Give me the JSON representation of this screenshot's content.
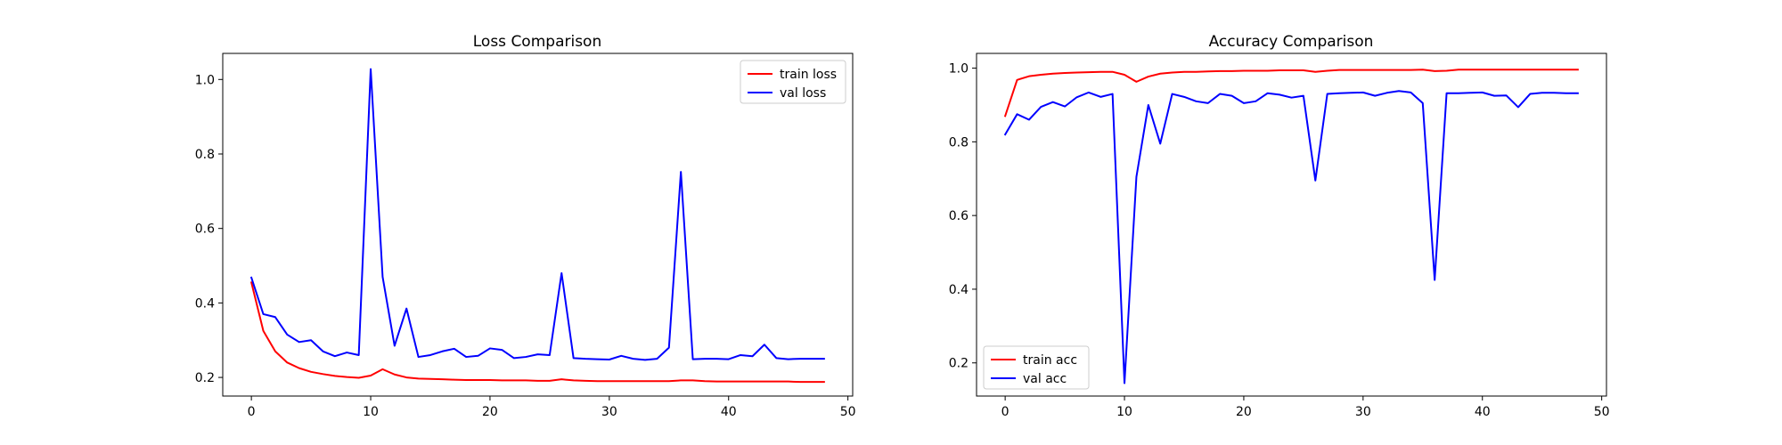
{
  "chart_data": [
    {
      "type": "line",
      "title": "Loss Comparison",
      "xlabel": "",
      "ylabel": "",
      "xlim": [
        -2.4,
        50.4
      ],
      "ylim": [
        0.15,
        1.07
      ],
      "x_ticks": [
        0,
        10,
        20,
        30,
        40,
        50
      ],
      "y_ticks": [
        0.2,
        0.4,
        0.6,
        0.8,
        1.0
      ],
      "grid": false,
      "legend": "upper-right",
      "series": [
        {
          "name": "train loss",
          "color": "#ff0000",
          "values": [
            0.455,
            0.325,
            0.27,
            0.24,
            0.225,
            0.215,
            0.209,
            0.204,
            0.201,
            0.199,
            0.205,
            0.222,
            0.208,
            0.2,
            0.197,
            0.196,
            0.195,
            0.194,
            0.193,
            0.193,
            0.193,
            0.192,
            0.192,
            0.192,
            0.191,
            0.191,
            0.195,
            0.192,
            0.191,
            0.19,
            0.19,
            0.19,
            0.19,
            0.19,
            0.19,
            0.19,
            0.192,
            0.192,
            0.19,
            0.189,
            0.189,
            0.189,
            0.189,
            0.189,
            0.189,
            0.189,
            0.188,
            0.188,
            0.188
          ]
        },
        {
          "name": "val loss",
          "color": "#0000ff",
          "values": [
            0.468,
            0.37,
            0.362,
            0.315,
            0.295,
            0.3,
            0.27,
            0.257,
            0.267,
            0.26,
            1.028,
            0.47,
            0.285,
            0.385,
            0.255,
            0.26,
            0.27,
            0.277,
            0.255,
            0.258,
            0.278,
            0.274,
            0.252,
            0.255,
            0.262,
            0.26,
            0.48,
            0.252,
            0.25,
            0.249,
            0.248,
            0.258,
            0.25,
            0.247,
            0.25,
            0.28,
            0.752,
            0.249,
            0.25,
            0.25,
            0.249,
            0.26,
            0.257,
            0.288,
            0.252,
            0.249,
            0.25,
            0.25,
            0.25
          ]
        }
      ]
    },
    {
      "type": "line",
      "title": "Accuracy Comparison",
      "xlabel": "",
      "ylabel": "",
      "xlim": [
        -2.4,
        50.4
      ],
      "ylim": [
        0.11,
        1.04
      ],
      "x_ticks": [
        0,
        10,
        20,
        30,
        40,
        50
      ],
      "y_ticks": [
        0.2,
        0.4,
        0.6,
        0.8,
        1.0
      ],
      "grid": false,
      "legend": "lower-left",
      "series": [
        {
          "name": "train acc",
          "color": "#ff0000",
          "values": [
            0.87,
            0.968,
            0.978,
            0.982,
            0.985,
            0.987,
            0.988,
            0.989,
            0.99,
            0.99,
            0.982,
            0.963,
            0.977,
            0.985,
            0.988,
            0.99,
            0.99,
            0.991,
            0.992,
            0.992,
            0.993,
            0.993,
            0.993,
            0.994,
            0.994,
            0.994,
            0.99,
            0.993,
            0.995,
            0.995,
            0.995,
            0.995,
            0.995,
            0.995,
            0.995,
            0.996,
            0.992,
            0.993,
            0.996,
            0.996,
            0.996,
            0.996,
            0.996,
            0.996,
            0.996,
            0.996,
            0.996,
            0.996,
            0.996
          ]
        },
        {
          "name": "val acc",
          "color": "#0000ff",
          "values": [
            0.82,
            0.875,
            0.86,
            0.895,
            0.908,
            0.896,
            0.921,
            0.934,
            0.922,
            0.93,
            0.145,
            0.705,
            0.9,
            0.795,
            0.93,
            0.922,
            0.91,
            0.905,
            0.93,
            0.925,
            0.905,
            0.91,
            0.932,
            0.928,
            0.92,
            0.925,
            0.695,
            0.93,
            0.932,
            0.933,
            0.934,
            0.925,
            0.933,
            0.938,
            0.934,
            0.905,
            0.425,
            0.932,
            0.932,
            0.933,
            0.934,
            0.925,
            0.926,
            0.894,
            0.93,
            0.933,
            0.933,
            0.932,
            0.932
          ]
        }
      ]
    }
  ]
}
